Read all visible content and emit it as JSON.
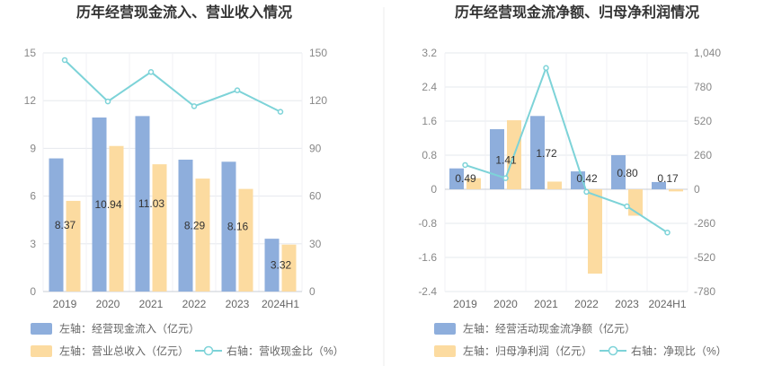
{
  "chart_data": [
    {
      "type": "bar",
      "title": "历年经营现金流入、营业收入情况",
      "categories": [
        "2019",
        "2020",
        "2021",
        "2022",
        "2023",
        "2024H1"
      ],
      "left_axis": {
        "ylim": [
          0,
          15
        ],
        "ticks": [
          "0",
          "3",
          "6",
          "9",
          "12",
          "15"
        ]
      },
      "right_axis": {
        "ylim": [
          0,
          150
        ],
        "ticks": [
          "0",
          "30",
          "60",
          "90",
          "120",
          "150"
        ]
      },
      "series": [
        {
          "name": "左轴：经营现金流入（亿元）",
          "kind": "bar",
          "axis": "left",
          "color": "#8eaedc",
          "values": [
            8.37,
            10.94,
            11.03,
            8.29,
            8.16,
            3.32
          ],
          "labels": [
            "8.37",
            "10.94",
            "11.03",
            "8.29",
            "8.16",
            "3.32"
          ]
        },
        {
          "name": "左轴：营业总收入（亿元）",
          "kind": "bar",
          "axis": "left",
          "color": "#fcdba0",
          "values": [
            5.7,
            9.15,
            8.0,
            7.1,
            6.45,
            2.95
          ]
        },
        {
          "name": "右轴：营收现金比（%）",
          "kind": "line",
          "axis": "right",
          "color": "#7dd3d8",
          "values": [
            145.5,
            119.5,
            138,
            116.5,
            126.5,
            113
          ]
        }
      ]
    },
    {
      "type": "bar",
      "title": "历年经营现金流净额、归母净利润情况",
      "categories": [
        "2019",
        "2020",
        "2021",
        "2022",
        "2023",
        "2024H1"
      ],
      "left_axis": {
        "ylim": [
          -2.4,
          3.2
        ],
        "ticks": [
          "-2.4",
          "-1.6",
          "-0.8",
          "0",
          "0.8",
          "1.6",
          "2.4",
          "3.2"
        ]
      },
      "right_axis": {
        "ylim": [
          -780,
          1040
        ],
        "ticks": [
          "-780",
          "-520",
          "-260",
          "0",
          "260",
          "520",
          "780",
          "1,040"
        ]
      },
      "series": [
        {
          "name": "左轴：经营活动现金流净额（亿元）",
          "kind": "bar",
          "axis": "left",
          "color": "#8eaedc",
          "values": [
            0.49,
            1.41,
            1.72,
            0.42,
            0.8,
            0.17
          ],
          "labels": [
            "0.49",
            "1.41",
            "1.72",
            "0.42",
            "0.80",
            "0.17"
          ]
        },
        {
          "name": "左轴：归母净利润（亿元）",
          "kind": "bar",
          "axis": "left",
          "color": "#fcdba0",
          "values": [
            0.26,
            1.62,
            0.18,
            -1.98,
            -0.62,
            -0.05
          ]
        },
        {
          "name": "右轴：净现比（%）",
          "kind": "line",
          "axis": "right",
          "color": "#7dd3d8",
          "values": [
            185,
            85,
            925,
            -20,
            -130,
            -330
          ]
        }
      ]
    }
  ]
}
